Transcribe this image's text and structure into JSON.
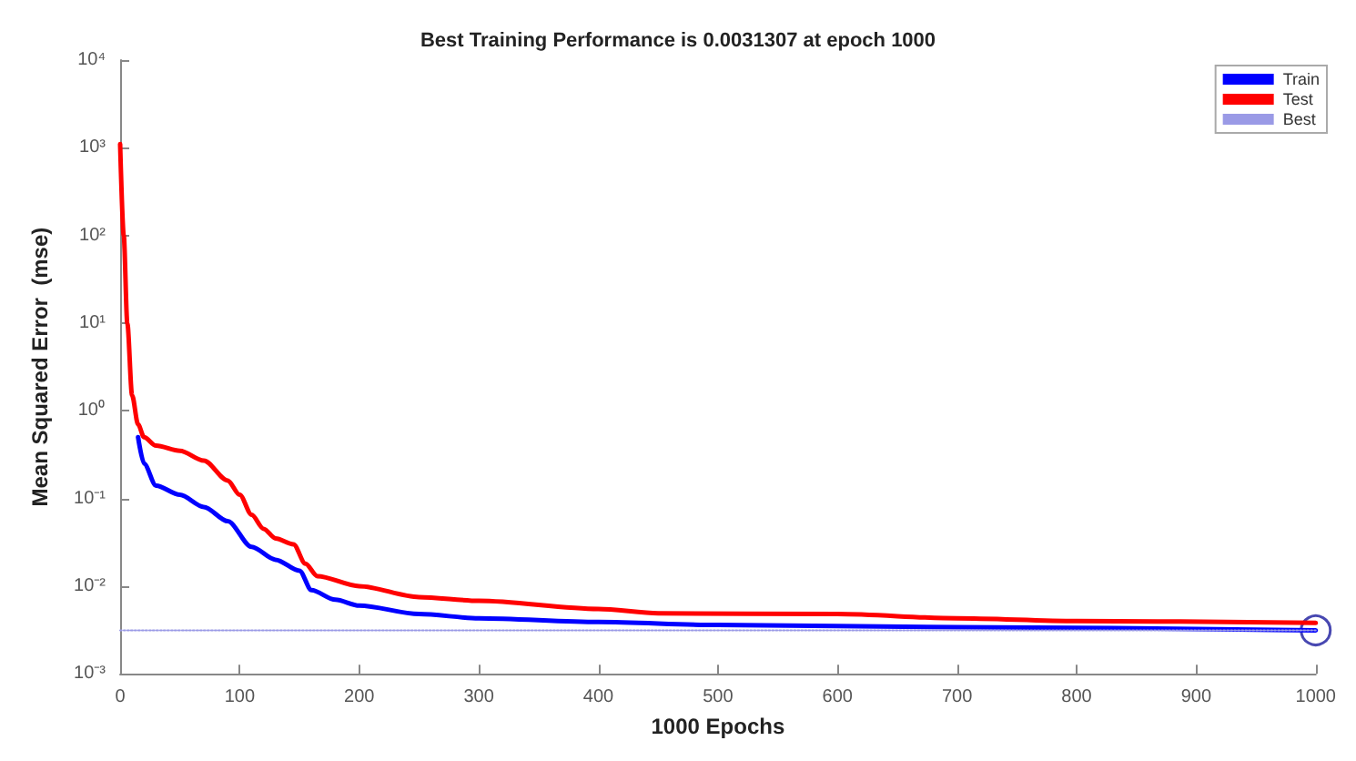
{
  "chart_data": {
    "type": "line",
    "title": "Best Training Performance is 0.0031307 at epoch 1000",
    "xlabel": "1000 Epochs",
    "ylabel": "Mean Squared Error  (mse)",
    "log": "y",
    "grid": false,
    "legend": "top right",
    "marker": "none",
    "line_style": "solid",
    "xlim": [
      0,
      1000
    ],
    "xticks": [
      0,
      100,
      200,
      300,
      400,
      500,
      600,
      700,
      800,
      900,
      1000
    ],
    "ylim": [
      0.001,
      10000
    ],
    "yticks": [
      {
        "value": 0.001,
        "label": "10⁻³"
      },
      {
        "value": 0.01,
        "label": "10⁻²"
      },
      {
        "value": 0.1,
        "label": "10⁻¹"
      },
      {
        "value": 1,
        "label": "10⁰"
      },
      {
        "value": 10,
        "label": "10¹"
      },
      {
        "value": 100,
        "label": "10²"
      },
      {
        "value": 1000,
        "label": "10³"
      },
      {
        "value": 10000,
        "label": "10⁴"
      }
    ],
    "series": [
      {
        "name": "Train",
        "color": "#0000ff",
        "x": [
          15,
          20,
          30,
          50,
          70,
          90,
          110,
          130,
          150,
          160,
          180,
          200,
          250,
          300,
          400,
          500,
          700,
          1000
        ],
        "values": [
          0.5,
          0.25,
          0.14,
          0.11,
          0.08,
          0.055,
          0.028,
          0.02,
          0.015,
          0.009,
          0.007,
          0.006,
          0.0048,
          0.0043,
          0.0039,
          0.0036,
          0.0034,
          0.0031307
        ]
      },
      {
        "name": "Test",
        "color": "#ff0000",
        "x": [
          0,
          3,
          6,
          10,
          15,
          20,
          30,
          50,
          70,
          90,
          100,
          110,
          120,
          130,
          145,
          155,
          165,
          200,
          250,
          300,
          400,
          450,
          600,
          700,
          800,
          1000
        ],
        "values": [
          1100,
          100,
          10,
          1.5,
          0.7,
          0.5,
          0.4,
          0.35,
          0.27,
          0.16,
          0.11,
          0.065,
          0.045,
          0.035,
          0.03,
          0.018,
          0.013,
          0.01,
          0.0075,
          0.0068,
          0.0055,
          0.0049,
          0.0048,
          0.0043,
          0.004,
          0.0038
        ]
      },
      {
        "name": "Best",
        "color": "#9a9ae6",
        "line_style": "dotted",
        "x": [
          0,
          1000
        ],
        "values": [
          0.0031307,
          0.0031307
        ]
      },
      {
        "type": "scatter",
        "color": "#1a1a9e",
        "marker": "circle",
        "x": [
          1000
        ],
        "values": [
          0.0031307
        ]
      }
    ]
  }
}
